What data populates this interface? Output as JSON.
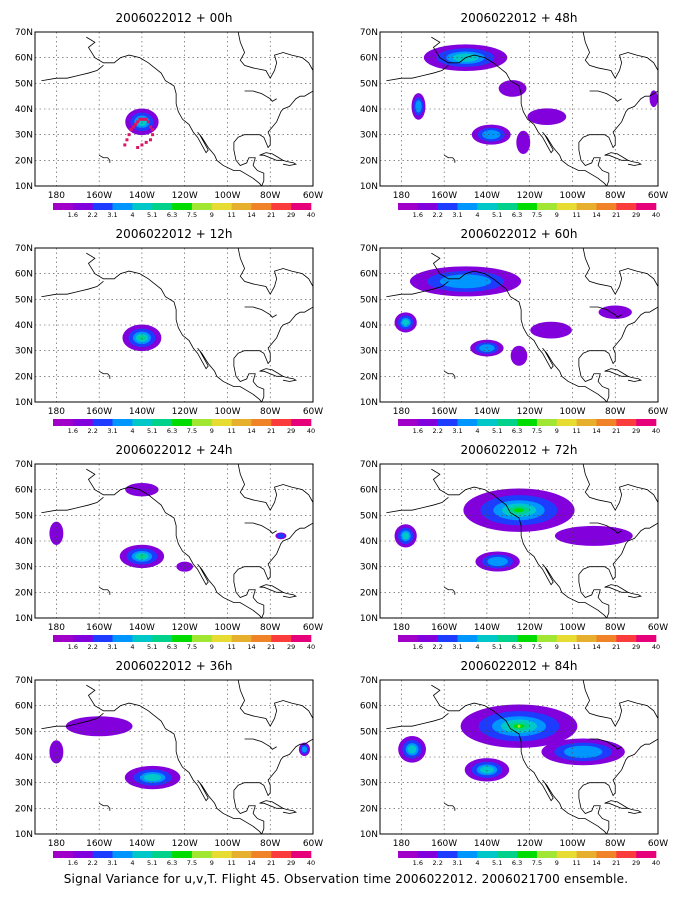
{
  "figure": {
    "caption": "Signal Variance for u,v,T. Flight 45. Observation time 2006022012. 2006021700 ensemble."
  },
  "colorbar": {
    "labels": [
      "1.6",
      "2.2",
      "3.1",
      "4",
      "5.1",
      "6.3",
      "7.5",
      "9",
      "11",
      "14",
      "21",
      "29",
      "40"
    ],
    "colors": [
      "#a000c8",
      "#8200dc",
      "#1e3cff",
      "#0096ff",
      "#00c8c8",
      "#00d28c",
      "#00dc00",
      "#a0e632",
      "#e6dc32",
      "#e6af2d",
      "#f08228",
      "#fa3c3c",
      "#e6007a"
    ]
  },
  "map": {
    "lon_labels": [
      "180",
      "160W",
      "140W",
      "120W",
      "100W",
      "80W",
      "60W"
    ],
    "lat_labels": [
      "10N",
      "20N",
      "30N",
      "40N",
      "50N",
      "60N",
      "70N"
    ]
  },
  "chart_data": [
    {
      "type": "heatmap",
      "title": "2006022012 + 00h",
      "xlim": [
        -190,
        -60
      ],
      "ylim": [
        10,
        70
      ],
      "grid": true,
      "blobs": [
        {
          "lon": -140,
          "lat": 35,
          "rx": 12,
          "ry": 8,
          "max_level": 4
        }
      ],
      "observations": [
        [
          -148,
          26
        ],
        [
          -147,
          28
        ],
        [
          -146,
          30
        ],
        [
          -145,
          32
        ],
        [
          -144,
          33
        ],
        [
          -143,
          34
        ],
        [
          -142,
          35
        ],
        [
          -141,
          36
        ],
        [
          -140,
          36
        ],
        [
          -139,
          36
        ],
        [
          -138,
          36
        ],
        [
          -137,
          35
        ],
        [
          -136,
          33
        ],
        [
          -135,
          32
        ],
        [
          -135,
          30
        ],
        [
          -136,
          28
        ],
        [
          -138,
          27
        ],
        [
          -140,
          26
        ],
        [
          -142,
          25
        ]
      ]
    },
    {
      "type": "heatmap",
      "title": "2006022012 + 48h",
      "xlim": [
        -190,
        -60
      ],
      "ylim": [
        10,
        70
      ],
      "grid": true,
      "blobs": [
        {
          "lon": -150,
          "lat": 60,
          "rx": 30,
          "ry": 8,
          "max_level": 4
        },
        {
          "lon": -172,
          "lat": 41,
          "rx": 5,
          "ry": 8,
          "max_level": 3
        },
        {
          "lon": -138,
          "lat": 30,
          "rx": 14,
          "ry": 6,
          "max_level": 3
        },
        {
          "lon": -128,
          "lat": 48,
          "rx": 10,
          "ry": 5,
          "max_level": 1
        },
        {
          "lon": -112,
          "lat": 37,
          "rx": 14,
          "ry": 5,
          "max_level": 1
        },
        {
          "lon": -123,
          "lat": 27,
          "rx": 5,
          "ry": 7,
          "max_level": 1
        },
        {
          "lon": -62,
          "lat": 44,
          "rx": 3,
          "ry": 5,
          "max_level": 1
        }
      ]
    },
    {
      "type": "heatmap",
      "title": "2006022012 + 12h",
      "xlim": [
        -190,
        -60
      ],
      "ylim": [
        10,
        70
      ],
      "grid": true,
      "blobs": [
        {
          "lon": -140,
          "lat": 35,
          "rx": 14,
          "ry": 8,
          "max_level": 5
        }
      ]
    },
    {
      "type": "heatmap",
      "title": "2006022012 + 60h",
      "xlim": [
        -190,
        -60
      ],
      "ylim": [
        10,
        70
      ],
      "grid": true,
      "blobs": [
        {
          "lon": -150,
          "lat": 57,
          "rx": 40,
          "ry": 9,
          "max_level": 3
        },
        {
          "lon": -178,
          "lat": 41,
          "rx": 8,
          "ry": 6,
          "max_level": 4
        },
        {
          "lon": -140,
          "lat": 31,
          "rx": 12,
          "ry": 5,
          "max_level": 3
        },
        {
          "lon": -110,
          "lat": 38,
          "rx": 15,
          "ry": 5,
          "max_level": 1
        },
        {
          "lon": -80,
          "lat": 45,
          "rx": 12,
          "ry": 4,
          "max_level": 1
        },
        {
          "lon": -125,
          "lat": 28,
          "rx": 6,
          "ry": 6,
          "max_level": 1
        }
      ]
    },
    {
      "type": "heatmap",
      "title": "2006022012 + 24h",
      "xlim": [
        -190,
        -60
      ],
      "ylim": [
        10,
        70
      ],
      "grid": true,
      "blobs": [
        {
          "lon": -140,
          "lat": 34,
          "rx": 16,
          "ry": 7,
          "max_level": 5
        },
        {
          "lon": -180,
          "lat": 43,
          "rx": 5,
          "ry": 7,
          "max_level": 1
        },
        {
          "lon": -140,
          "lat": 60,
          "rx": 12,
          "ry": 4,
          "max_level": 1
        },
        {
          "lon": -75,
          "lat": 42,
          "rx": 4,
          "ry": 2,
          "max_level": 2
        },
        {
          "lon": -120,
          "lat": 30,
          "rx": 6,
          "ry": 3,
          "max_level": 1
        }
      ]
    },
    {
      "type": "heatmap",
      "title": "2006022012 + 72h",
      "xlim": [
        -190,
        -60
      ],
      "ylim": [
        10,
        70
      ],
      "grid": true,
      "blobs": [
        {
          "lon": -125,
          "lat": 52,
          "rx": 40,
          "ry": 13,
          "max_level": 6
        },
        {
          "lon": -178,
          "lat": 42,
          "rx": 8,
          "ry": 7,
          "max_level": 4
        },
        {
          "lon": -135,
          "lat": 32,
          "rx": 16,
          "ry": 6,
          "max_level": 3
        },
        {
          "lon": -90,
          "lat": 42,
          "rx": 28,
          "ry": 6,
          "max_level": 1
        }
      ]
    },
    {
      "type": "heatmap",
      "title": "2006022012 + 36h",
      "xlim": [
        -190,
        -60
      ],
      "ylim": [
        10,
        70
      ],
      "grid": true,
      "blobs": [
        {
          "lon": -160,
          "lat": 52,
          "rx": 24,
          "ry": 6,
          "max_level": 1
        },
        {
          "lon": -180,
          "lat": 42,
          "rx": 5,
          "ry": 7,
          "max_level": 1
        },
        {
          "lon": -135,
          "lat": 32,
          "rx": 20,
          "ry": 7,
          "max_level": 4
        },
        {
          "lon": -64,
          "lat": 43,
          "rx": 4,
          "ry": 4,
          "max_level": 3
        }
      ]
    },
    {
      "type": "heatmap",
      "title": "2006022012 + 84h",
      "xlim": [
        -190,
        -60
      ],
      "ylim": [
        10,
        70
      ],
      "grid": true,
      "blobs": [
        {
          "lon": -125,
          "lat": 52,
          "rx": 42,
          "ry": 13,
          "max_level": 7
        },
        {
          "lon": -175,
          "lat": 43,
          "rx": 10,
          "ry": 8,
          "max_level": 4
        },
        {
          "lon": -140,
          "lat": 35,
          "rx": 16,
          "ry": 7,
          "max_level": 4
        },
        {
          "lon": -95,
          "lat": 42,
          "rx": 30,
          "ry": 8,
          "max_level": 3
        }
      ]
    }
  ]
}
